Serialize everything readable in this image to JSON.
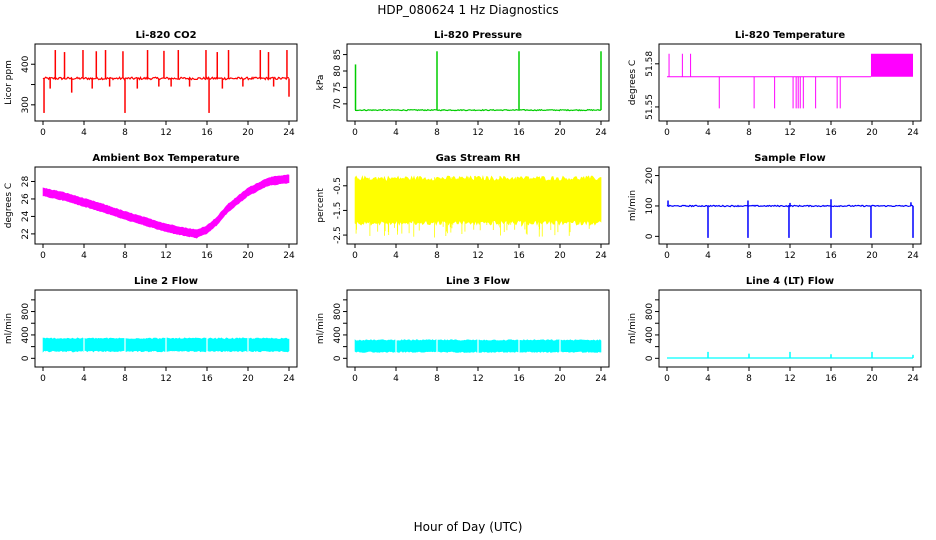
{
  "figure": {
    "title": "HDP_080624  1 Hz Diagnostics",
    "xlabel": "Hour of Day (UTC)"
  },
  "colors": {
    "red": "#ff0000",
    "green": "#00cd00",
    "magenta": "#ff00ff",
    "yellow": "#ffff00",
    "blue": "#0000ff",
    "cyan": "#00ffff"
  },
  "chart_data": [
    {
      "id": "co2",
      "type": "line",
      "title": "Li-820 CO2",
      "ylabel": "Licor ppm",
      "color_key": "red",
      "xlim": [
        0,
        24
      ],
      "ylim": [
        270,
        440
      ],
      "xticks": [
        0,
        4,
        8,
        12,
        16,
        20,
        24
      ],
      "yticks": [
        300,
        350,
        400
      ],
      "yticklabels": [
        "300",
        "",
        "400"
      ],
      "baseline": 365,
      "noise": 3,
      "spikes_up": [
        {
          "x": 1.2,
          "y": 435
        },
        {
          "x": 2.1,
          "y": 430
        },
        {
          "x": 3.9,
          "y": 435
        },
        {
          "x": 5.2,
          "y": 432
        },
        {
          "x": 6.1,
          "y": 435
        },
        {
          "x": 7.8,
          "y": 432
        },
        {
          "x": 10.2,
          "y": 435
        },
        {
          "x": 11.8,
          "y": 433
        },
        {
          "x": 13.2,
          "y": 435
        },
        {
          "x": 15.9,
          "y": 435
        },
        {
          "x": 17.0,
          "y": 430
        },
        {
          "x": 18.1,
          "y": 435
        },
        {
          "x": 21.2,
          "y": 435
        },
        {
          "x": 22.0,
          "y": 430
        },
        {
          "x": 23.8,
          "y": 435
        }
      ],
      "spikes_down": [
        {
          "x": 0.1,
          "y": 280
        },
        {
          "x": 0.7,
          "y": 340
        },
        {
          "x": 2.8,
          "y": 330
        },
        {
          "x": 4.8,
          "y": 340
        },
        {
          "x": 6.5,
          "y": 345
        },
        {
          "x": 8.0,
          "y": 280
        },
        {
          "x": 9.2,
          "y": 340
        },
        {
          "x": 11.3,
          "y": 345
        },
        {
          "x": 12.5,
          "y": 345
        },
        {
          "x": 14.3,
          "y": 345
        },
        {
          "x": 16.2,
          "y": 280
        },
        {
          "x": 17.5,
          "y": 340
        },
        {
          "x": 19.5,
          "y": 345
        },
        {
          "x": 22.5,
          "y": 345
        },
        {
          "x": 24.0,
          "y": 320
        }
      ]
    },
    {
      "id": "pressure",
      "type": "line",
      "title": "Li-820 Pressure",
      "ylabel": "kPa",
      "color_key": "green",
      "xlim": [
        0,
        24
      ],
      "ylim": [
        66,
        87
      ],
      "xticks": [
        0,
        4,
        8,
        12,
        16,
        20,
        24
      ],
      "yticks": [
        70,
        75,
        80,
        85
      ],
      "yticklabels": [
        "70",
        "75",
        "80",
        "85"
      ],
      "baseline": 68.1,
      "noise": 0.15,
      "spikes_up": [
        {
          "x": 0.05,
          "y": 82
        },
        {
          "x": 8.0,
          "y": 86
        },
        {
          "x": 16.0,
          "y": 86
        },
        {
          "x": 24.0,
          "y": 86
        }
      ],
      "spikes_down": []
    },
    {
      "id": "licor-temp",
      "type": "line",
      "title": "Li-820 Temperature",
      "ylabel": "degrees C",
      "color_key": "magenta",
      "xlim": [
        0,
        24
      ],
      "ylim": [
        51.543,
        51.591
      ],
      "xticks": [
        0,
        4,
        8,
        12,
        16,
        20,
        24
      ],
      "yticks": [
        51.55,
        51.58
      ],
      "yticklabels": [
        "51.55",
        "51.58"
      ],
      "baseline": 51.571,
      "high_value": 51.587,
      "low_value": 51.549,
      "spikes_up": [
        0.2,
        1.5,
        2.3
      ],
      "spikes_down": [
        5.1,
        8.5,
        10.5,
        12.3,
        12.6,
        12.8,
        13.0,
        13.3,
        14.5,
        16.6,
        16.9
      ],
      "high_band": [
        19.9,
        24.0
      ]
    },
    {
      "id": "ambient-temp",
      "type": "band",
      "title": "Ambient Box Temperature",
      "ylabel": "degrees C",
      "color_key": "magenta",
      "xlim": [
        0,
        24
      ],
      "ylim": [
        21.3,
        29.2
      ],
      "xticks": [
        0,
        4,
        8,
        12,
        16,
        20,
        24
      ],
      "yticks": [
        22,
        24,
        26,
        28
      ],
      "yticklabels": [
        "22",
        "24",
        "26",
        "28"
      ],
      "x": [
        0,
        2,
        4,
        6,
        8,
        10,
        12,
        14,
        15,
        16,
        17,
        18,
        20,
        22,
        24
      ],
      "y": [
        26.8,
        26.3,
        25.6,
        24.9,
        24.1,
        23.4,
        22.7,
        22.2,
        22.0,
        22.5,
        23.5,
        24.9,
        26.8,
        28.0,
        28.3
      ],
      "half_width": 0.5
    },
    {
      "id": "gas-rh",
      "type": "band",
      "title": "Gas Stream RH",
      "ylabel": "percent",
      "color_key": "yellow",
      "xlim": [
        0,
        24
      ],
      "ylim": [
        -2.7,
        0.1
      ],
      "xticks": [
        0,
        4,
        8,
        12,
        16,
        20,
        24
      ],
      "yticks": [
        -2.5,
        -1.5,
        -0.5
      ],
      "yticklabels": [
        "-2.5",
        "-1.5",
        "-0.5"
      ],
      "x": [
        0,
        24
      ],
      "y": [
        -1.1,
        -1.1
      ],
      "half_width": 1.0,
      "spike_min": -2.6,
      "spike_max": -0.1
    },
    {
      "id": "sample-flow",
      "type": "line",
      "title": "Sample Flow",
      "ylabel": "ml/min",
      "color_key": "blue",
      "xlim": [
        0,
        24
      ],
      "ylim": [
        -12,
        215
      ],
      "xticks": [
        0,
        4,
        8,
        12,
        16,
        20,
        24
      ],
      "yticks": [
        0,
        100,
        200
      ],
      "yticklabels": [
        "0",
        "100",
        "200"
      ],
      "baseline": 100,
      "noise": 2,
      "spikes_up": [
        {
          "x": 0.1,
          "y": 118
        },
        {
          "x": 7.9,
          "y": 118
        },
        {
          "x": 12.0,
          "y": 110
        },
        {
          "x": 16.0,
          "y": 122
        },
        {
          "x": 23.8,
          "y": 112
        }
      ],
      "spikes_down": [
        {
          "x": 4.0,
          "y": -5
        },
        {
          "x": 7.9,
          "y": -5
        },
        {
          "x": 11.9,
          "y": -5
        },
        {
          "x": 16.0,
          "y": -5
        },
        {
          "x": 19.9,
          "y": -5
        },
        {
          "x": 24.0,
          "y": -5
        }
      ]
    },
    {
      "id": "line2-flow",
      "type": "band",
      "title": "Line 2 Flow",
      "ylabel": "ml/min",
      "color_key": "cyan",
      "xlim": [
        0,
        24
      ],
      "ylim": [
        -80,
        1100
      ],
      "xticks": [
        0,
        4,
        8,
        12,
        16,
        20,
        24
      ],
      "yticks": [
        0,
        200,
        400,
        600,
        800,
        1000
      ],
      "yticklabels": [
        "0",
        "",
        "400",
        "",
        "800",
        ""
      ],
      "x": [
        0,
        24
      ],
      "y": [
        230,
        230
      ],
      "half_width": 120,
      "gaps": [
        4.0,
        8.0,
        12.0,
        16.0,
        20.0
      ]
    },
    {
      "id": "line3-flow",
      "type": "band",
      "title": "Line 3 Flow",
      "ylabel": "ml/min",
      "color_key": "cyan",
      "xlim": [
        0,
        24
      ],
      "ylim": [
        -80,
        1100
      ],
      "xticks": [
        0,
        4,
        8,
        12,
        16,
        20,
        24
      ],
      "yticks": [
        0,
        200,
        400,
        600,
        800,
        1000
      ],
      "yticklabels": [
        "0",
        "",
        "400",
        "",
        "800",
        ""
      ],
      "x": [
        0,
        24
      ],
      "y": [
        210,
        210
      ],
      "half_width": 110,
      "gaps": [
        4.0,
        8.0,
        12.0,
        16.0,
        20.0
      ]
    },
    {
      "id": "line4-flow",
      "type": "line",
      "title": "Line 4 (LT) Flow",
      "ylabel": "ml/min",
      "color_key": "cyan",
      "xlim": [
        0,
        24
      ],
      "ylim": [
        -80,
        1100
      ],
      "xticks": [
        0,
        4,
        8,
        12,
        16,
        20,
        24
      ],
      "yticks": [
        0,
        200,
        400,
        600,
        800,
        1000
      ],
      "yticklabels": [
        "0",
        "",
        "400",
        "",
        "800",
        ""
      ],
      "baseline": 5,
      "noise": 0,
      "spikes_up": [
        {
          "x": 4.0,
          "y": 110
        },
        {
          "x": 8.0,
          "y": 80
        },
        {
          "x": 12.0,
          "y": 110
        },
        {
          "x": 16.0,
          "y": 70
        },
        {
          "x": 20.0,
          "y": 110
        },
        {
          "x": 24.0,
          "y": 60
        }
      ],
      "spikes_down": []
    }
  ]
}
